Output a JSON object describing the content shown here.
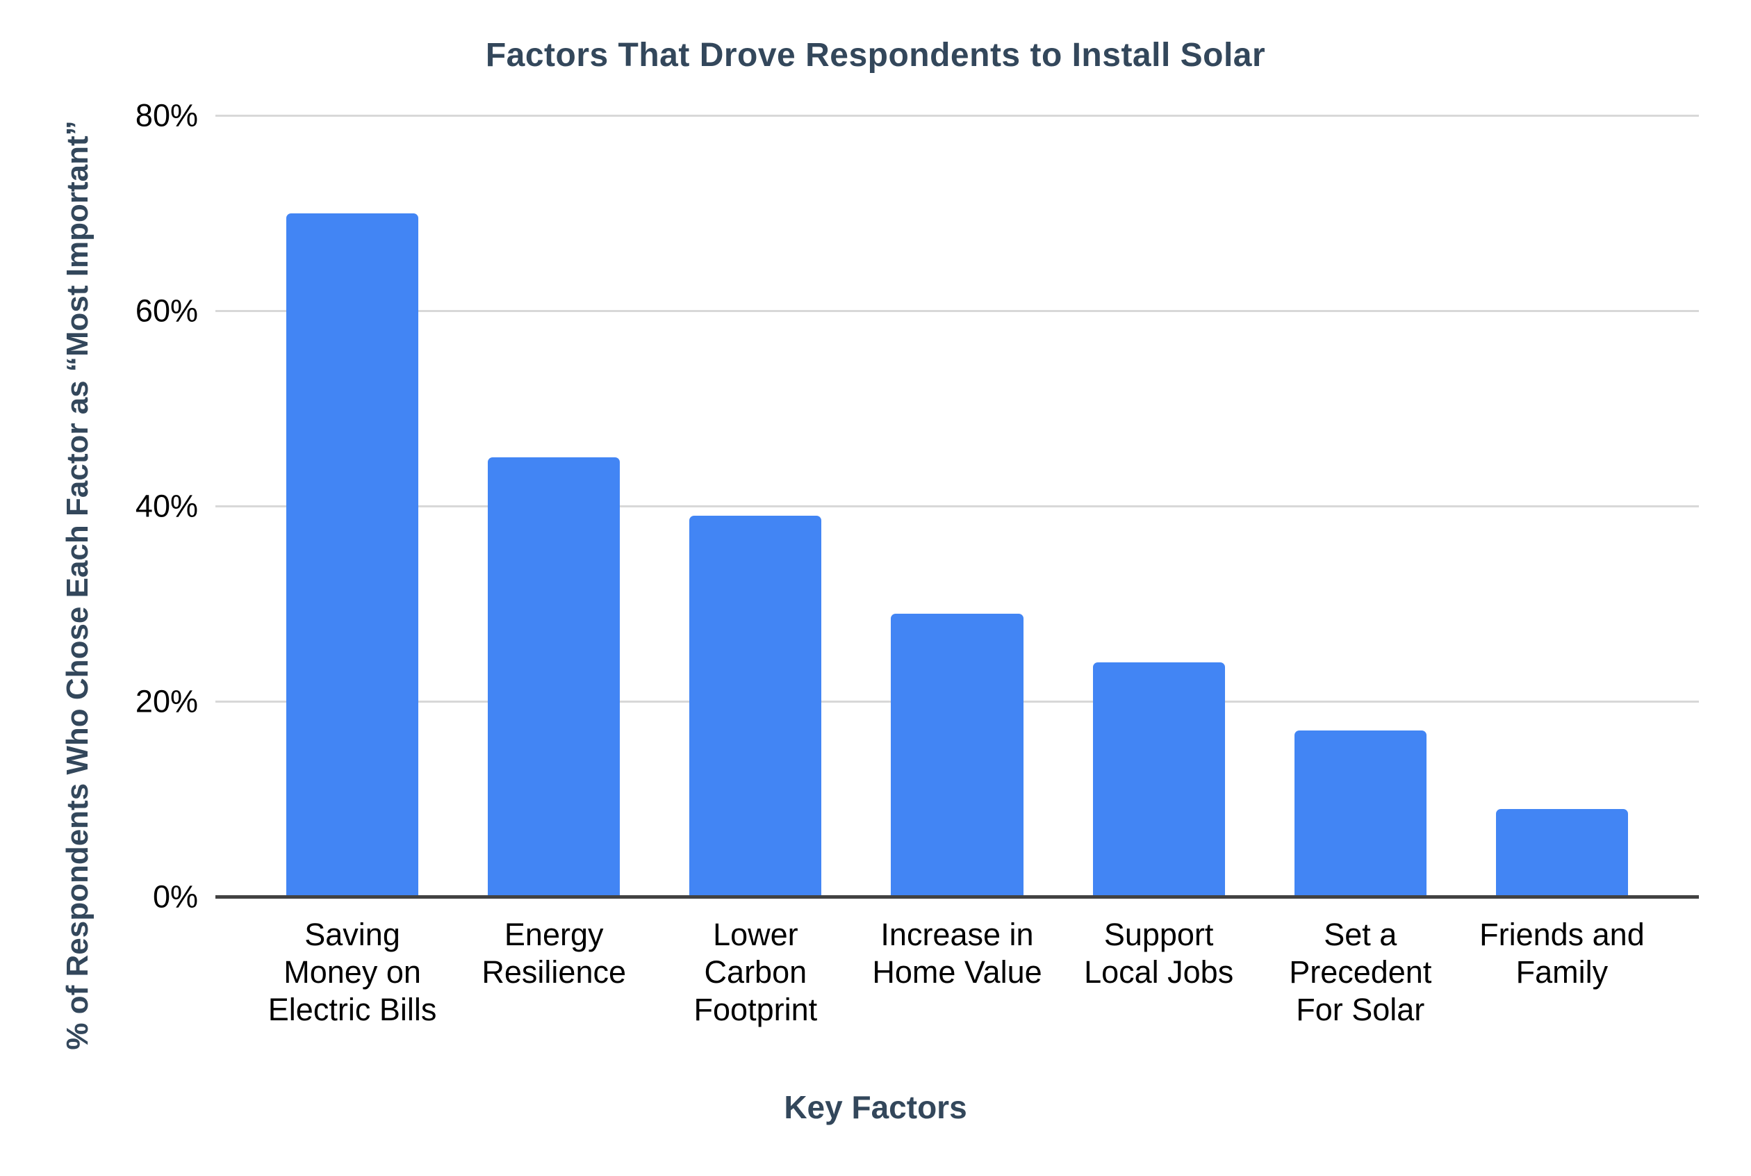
{
  "page": {
    "background": "#FFFFFF"
  },
  "chart_data": {
    "type": "bar",
    "title": "Factors That Drove Respondents to Install Solar",
    "xlabel": "Key Factors",
    "ylabel": "% of Respondents Who Chose Each Factor as “Most Important”",
    "categories": [
      "Saving Money on Electric Bills",
      "Energy Resilience",
      "Lower Carbon Footprint",
      "Increase in Home Value",
      "Support Local Jobs",
      "Set a Precedent For Solar",
      "Friends and Family"
    ],
    "category_display_lines": [
      [
        "Saving",
        "Money on",
        "Electric Bills"
      ],
      [
        "Energy",
        "Resilience"
      ],
      [
        "Lower",
        "Carbon",
        "Footprint"
      ],
      [
        "Increase in",
        "Home Value"
      ],
      [
        "Support",
        "Local Jobs"
      ],
      [
        "Set a",
        "Precedent",
        "For Solar"
      ],
      [
        "Friends and",
        "Family"
      ]
    ],
    "values": [
      70,
      45,
      39,
      29,
      24,
      17,
      9
    ],
    "unit": "%",
    "ylim": [
      0,
      80
    ],
    "yticks": [
      0,
      20,
      40,
      60,
      80
    ],
    "ytick_labels": [
      "0%",
      "20%",
      "40%",
      "60%",
      "80%"
    ],
    "grid": "horizontal",
    "legend": "none",
    "colors": {
      "bar": "#4285F4",
      "title": "#33475B",
      "tick_label": "#000000",
      "gridline": "#D8D8D8",
      "axis_line": "#424242",
      "background": "#FFFFFF"
    }
  }
}
